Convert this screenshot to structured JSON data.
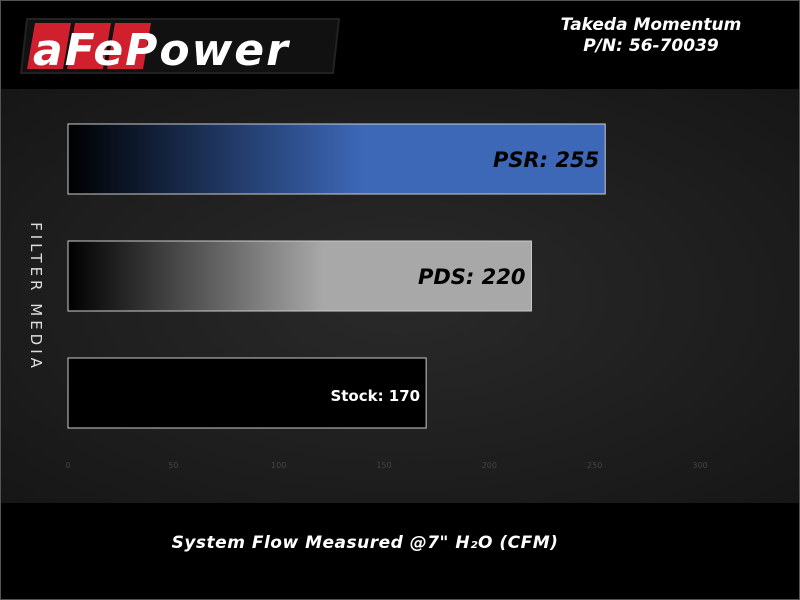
{
  "header": {
    "logo_text": "aFePower",
    "model": "Takeda Momentum",
    "part_number": "P/N: 56-70039"
  },
  "colors": {
    "psr": "#3d68b8",
    "pds": "#a8a8a8",
    "stock": "#000000",
    "logo_red": "#d0202e"
  },
  "chart_data": {
    "type": "bar",
    "orientation": "horizontal",
    "title": "",
    "ylabel": "FILTER MEDIA",
    "xlabel": "System Flow Measured @7\" H₂O (CFM)",
    "xlim": [
      0,
      300
    ],
    "xticks": [
      "0",
      "50",
      "100",
      "150",
      "200",
      "250",
      "300"
    ],
    "grid": false,
    "categories": [
      "PSR",
      "PDS",
      "Stock"
    ],
    "values": [
      255,
      220,
      170
    ],
    "data_labels": [
      "PSR: 255",
      "PDS: 220",
      "Stock: 170"
    ]
  }
}
